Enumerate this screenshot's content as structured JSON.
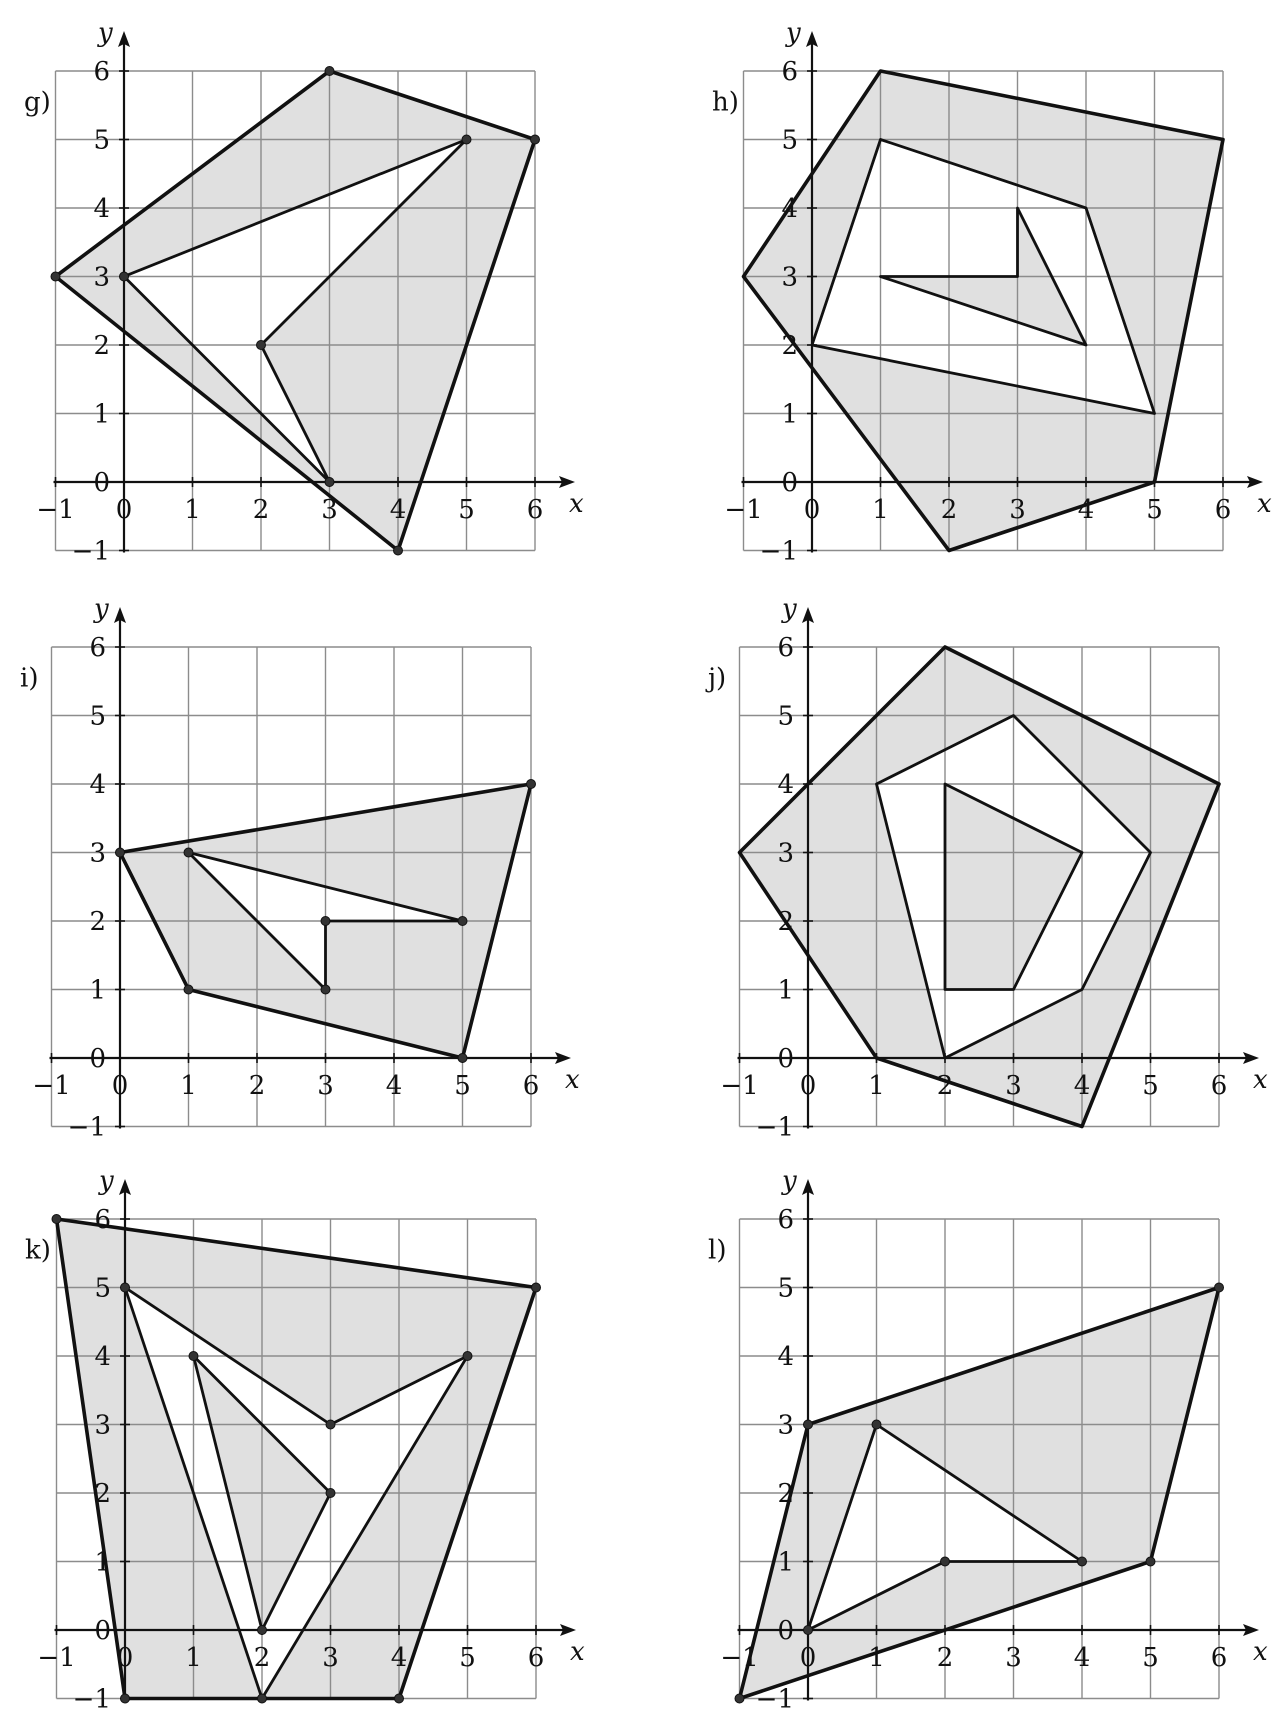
{
  "axis_labels": {
    "x": "x",
    "y": "y"
  },
  "x_ticks": [
    "-1",
    "0",
    "1",
    "2",
    "3",
    "4",
    "5",
    "6"
  ],
  "y_ticks": [
    "-1",
    "0",
    "1",
    "2",
    "3",
    "4",
    "5",
    "6"
  ],
  "colors": {
    "fill": "#e0e0e0",
    "grid": "#8c8c8c",
    "stroke": "#111111"
  },
  "panels": [
    {
      "id": "g",
      "label": "g)",
      "outer": [
        [
          -1,
          3
        ],
        [
          3,
          6
        ],
        [
          6,
          5
        ],
        [
          4,
          -1
        ]
      ],
      "holes": [
        [
          [
            0,
            3
          ],
          [
            5,
            5
          ],
          [
            2,
            2
          ],
          [
            3,
            0
          ]
        ]
      ],
      "islands": [],
      "points": [
        [
          -1,
          3
        ],
        [
          3,
          6
        ],
        [
          6,
          5
        ],
        [
          4,
          -1
        ],
        [
          0,
          3
        ],
        [
          5,
          5
        ],
        [
          2,
          2
        ],
        [
          3,
          0
        ]
      ]
    },
    {
      "id": "h",
      "label": "h)",
      "outer": [
        [
          -1,
          3
        ],
        [
          1,
          6
        ],
        [
          6,
          5
        ],
        [
          5,
          0
        ],
        [
          2,
          -1
        ]
      ],
      "holes": [
        [
          [
            1,
            5
          ],
          [
            4,
            4
          ],
          [
            5,
            1
          ],
          [
            0,
            2
          ]
        ]
      ],
      "islands": [
        [
          [
            1,
            3
          ],
          [
            3,
            3
          ],
          [
            3,
            4
          ],
          [
            4,
            2
          ]
        ]
      ],
      "points": []
    },
    {
      "id": "i",
      "label": "i)",
      "outer": [
        [
          0,
          3
        ],
        [
          6,
          4
        ],
        [
          5,
          0
        ],
        [
          1,
          1
        ]
      ],
      "holes": [
        [
          [
            1,
            3
          ],
          [
            5,
            2
          ],
          [
            3,
            2
          ],
          [
            3,
            1
          ]
        ]
      ],
      "islands": [],
      "points": [
        [
          0,
          3
        ],
        [
          6,
          4
        ],
        [
          5,
          0
        ],
        [
          1,
          1
        ],
        [
          1,
          3
        ],
        [
          5,
          2
        ],
        [
          3,
          2
        ],
        [
          3,
          1
        ]
      ]
    },
    {
      "id": "j",
      "label": "j)",
      "outer": [
        [
          -1,
          3
        ],
        [
          2,
          6
        ],
        [
          6,
          4
        ],
        [
          4,
          -1
        ],
        [
          1,
          0
        ]
      ],
      "holes": [
        [
          [
            1,
            4
          ],
          [
            3,
            5
          ],
          [
            5,
            3
          ],
          [
            4,
            1
          ],
          [
            2,
            0
          ]
        ]
      ],
      "islands": [
        [
          [
            2,
            4
          ],
          [
            4,
            3
          ],
          [
            3,
            1
          ],
          [
            2,
            1
          ]
        ]
      ],
      "points": []
    },
    {
      "id": "k",
      "label": "k)",
      "outer": [
        [
          -1,
          6
        ],
        [
          6,
          5
        ],
        [
          4,
          -1
        ],
        [
          0,
          -1
        ]
      ],
      "holes": [
        [
          [
            0,
            5
          ],
          [
            3,
            3
          ],
          [
            5,
            4
          ],
          [
            2,
            -1
          ]
        ]
      ],
      "islands": [
        [
          [
            1,
            4
          ],
          [
            3,
            2
          ],
          [
            2,
            0
          ]
        ]
      ],
      "points": [
        [
          -1,
          6
        ],
        [
          6,
          5
        ],
        [
          4,
          -1
        ],
        [
          0,
          -1
        ],
        [
          0,
          5
        ],
        [
          3,
          3
        ],
        [
          5,
          4
        ],
        [
          2,
          -1
        ],
        [
          1,
          4
        ],
        [
          3,
          2
        ],
        [
          2,
          0
        ]
      ]
    },
    {
      "id": "l",
      "label": "l)",
      "outer": [
        [
          -1,
          -1
        ],
        [
          0,
          3
        ],
        [
          6,
          5
        ],
        [
          5,
          1
        ]
      ],
      "holes": [
        [
          [
            0,
            0
          ],
          [
            1,
            3
          ],
          [
            4,
            1
          ],
          [
            2,
            1
          ]
        ]
      ],
      "islands": [],
      "points": [
        [
          -1,
          -1
        ],
        [
          0,
          3
        ],
        [
          6,
          5
        ],
        [
          5,
          1
        ],
        [
          0,
          0
        ],
        [
          1,
          3
        ],
        [
          4,
          1
        ],
        [
          2,
          1
        ]
      ]
    }
  ]
}
